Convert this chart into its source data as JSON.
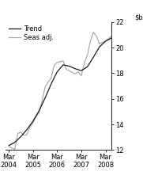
{
  "ylim": [
    12,
    22
  ],
  "yticks": [
    12,
    14,
    16,
    18,
    20,
    22
  ],
  "background_color": "#ffffff",
  "legend_entries": [
    "Trend",
    "Seas adj."
  ],
  "xtick_labels": [
    "Mar\n2004",
    "Mar\n2005",
    "Mar\n2006",
    "Mar\n2007",
    "Mar\n2008"
  ],
  "xtick_positions": [
    0,
    4,
    8,
    12,
    16
  ],
  "xlim": [
    -0.5,
    17
  ],
  "trend_x": [
    0,
    1,
    2,
    3,
    4,
    5,
    6,
    7,
    8,
    9,
    10,
    11,
    12,
    13,
    14,
    15,
    16,
    17
  ],
  "trend_y": [
    12.35,
    12.6,
    13.05,
    13.6,
    14.25,
    15.05,
    16.05,
    17.15,
    18.1,
    18.65,
    18.55,
    18.35,
    18.2,
    18.5,
    19.25,
    20.05,
    20.5,
    20.75
  ],
  "seas_x": [
    0,
    0.5,
    1,
    1.5,
    2,
    2.5,
    3,
    3.5,
    4,
    4.5,
    5,
    5.5,
    6,
    6.5,
    7,
    7.5,
    8,
    8.5,
    9,
    9.5,
    10,
    10.5,
    11,
    11.5,
    12,
    12.5,
    13,
    13.5,
    14,
    14.5,
    15,
    15.5,
    16,
    16.5,
    17
  ],
  "seas_y": [
    12.3,
    12.15,
    12.05,
    13.3,
    13.4,
    13.15,
    13.2,
    13.8,
    14.1,
    14.6,
    14.9,
    15.8,
    16.9,
    17.3,
    17.6,
    18.6,
    18.85,
    18.9,
    18.95,
    18.3,
    18.2,
    18.05,
    17.95,
    18.1,
    17.8,
    18.8,
    19.4,
    20.5,
    21.2,
    20.9,
    20.3,
    20.4,
    20.5,
    20.7,
    20.9
  ],
  "trend_color": "#1a1a1a",
  "seas_color": "#aaaaaa",
  "trend_lw": 0.9,
  "seas_lw": 0.9,
  "font_size": 6.0,
  "legend_fontsize": 6.0
}
